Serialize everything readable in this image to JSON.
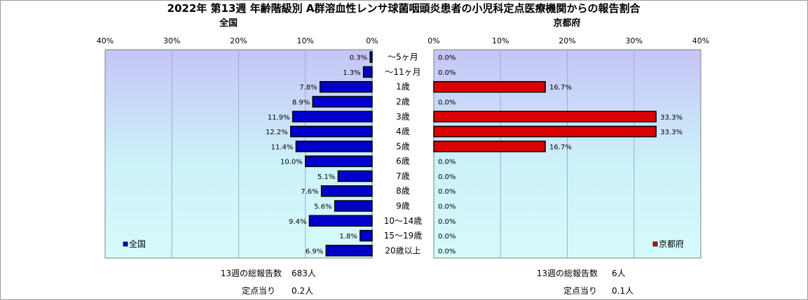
{
  "title": "2022年 第13週  年齢階級別 A群溶血性レンサ球菌咽頭炎患者の小児科定点医療機関からの報告割合",
  "chart_data": [
    {
      "type": "bar",
      "orientation": "horizontal",
      "direction": "right-to-left",
      "title": "全国",
      "categories": [
        "～5ヶ月",
        "～11ヶ月",
        "1歳",
        "2歳",
        "3歳",
        "4歳",
        "5歳",
        "6歳",
        "7歳",
        "8歳",
        "9歳",
        "10～14歳",
        "15～19歳",
        "20歳以上"
      ],
      "series": [
        {
          "name": "全国",
          "values": [
            0.3,
            1.3,
            7.8,
            8.9,
            11.9,
            12.2,
            11.4,
            10.0,
            5.1,
            7.6,
            5.6,
            9.4,
            1.8,
            6.9
          ],
          "color": "#0000cc"
        }
      ],
      "data_labels": [
        "0.3%",
        "1.3%",
        "7.8%",
        "8.9%",
        "11.9%",
        "12.2%",
        "11.4%",
        "10.0%",
        "5.1%",
        "7.6%",
        "5.6%",
        "9.4%",
        "1.8%",
        "6.9%"
      ],
      "xlim": [
        0,
        40
      ],
      "ticks": [
        "40%",
        "30%",
        "20%",
        "10%",
        "0%"
      ],
      "grid": true,
      "legend": "bottom-left"
    },
    {
      "type": "bar",
      "orientation": "horizontal",
      "direction": "left-to-right",
      "title": "京都府",
      "categories": [
        "～5ヶ月",
        "～11ヶ月",
        "1歳",
        "2歳",
        "3歳",
        "4歳",
        "5歳",
        "6歳",
        "7歳",
        "8歳",
        "9歳",
        "10～14歳",
        "15～19歳",
        "20歳以上"
      ],
      "series": [
        {
          "name": "京都府",
          "values": [
            0.0,
            0.0,
            16.7,
            0.0,
            33.3,
            33.3,
            16.7,
            0.0,
            0.0,
            0.0,
            0.0,
            0.0,
            0.0,
            0.0
          ],
          "color": "#dd0000"
        }
      ],
      "data_labels": [
        "0.0%",
        "0.0%",
        "16.7%",
        "0.0%",
        "33.3%",
        "33.3%",
        "16.7%",
        "0.0%",
        "0.0%",
        "0.0%",
        "0.0%",
        "0.0%",
        "0.0%",
        "0.0%"
      ],
      "xlim": [
        0,
        40
      ],
      "ticks": [
        "0%",
        "10%",
        "20%",
        "30%",
        "40%"
      ],
      "grid": true,
      "legend": "bottom-right"
    }
  ],
  "footer": {
    "left_total_label": "13週の総報告数",
    "left_total_value": "683人",
    "left_per_label": "定点当り",
    "left_per_value": "0.2人",
    "right_total_label": "13週の総報告数",
    "right_total_value": "6人",
    "right_per_label": "定点当り",
    "right_per_value": "0.1人"
  }
}
